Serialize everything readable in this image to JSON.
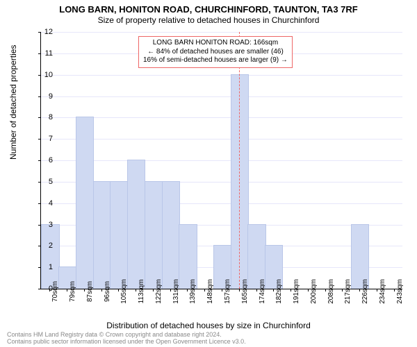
{
  "title": "LONG BARN, HONITON ROAD, CHURCHINFORD, TAUNTON, TA3 7RF",
  "subtitle": "Size of property relative to detached houses in Churchinford",
  "ylabel": "Number of detached properties",
  "xlabel": "Distribution of detached houses by size in Churchinford",
  "footer_line1": "Contains HM Land Registry data © Crown copyright and database right 2024.",
  "footer_line2": "Contains public sector information licensed under the Open Government Licence v3.0.",
  "chart": {
    "type": "histogram",
    "ylim": [
      0,
      12
    ],
    "ytick_step": 1,
    "x_categories": [
      "70sqm",
      "79sqm",
      "87sqm",
      "96sqm",
      "105sqm",
      "113sqm",
      "122sqm",
      "131sqm",
      "139sqm",
      "148sqm",
      "157sqm",
      "165sqm",
      "174sqm",
      "182sqm",
      "191sqm",
      "200sqm",
      "208sqm",
      "217sqm",
      "226sqm",
      "234sqm",
      "243sqm"
    ],
    "bar_values": [
      3,
      1,
      8,
      5,
      5,
      6,
      5,
      5,
      3,
      0,
      2,
      10,
      3,
      2,
      0,
      0,
      0,
      0,
      3,
      0,
      0
    ],
    "bar_color": "#cfd9f2",
    "bar_border": "#b9c6e8",
    "grid_color": "#e6e6fa",
    "background_color": "#ffffff",
    "reference_line": {
      "index": 11,
      "color": "#e66"
    },
    "annotation": {
      "line1": "LONG BARN HONITON ROAD: 166sqm",
      "line2": "← 84% of detached houses are smaller (46)",
      "line3": "16% of semi-detached houses are larger (9) →",
      "border_color": "#e66",
      "fontsize": 10
    },
    "title_fontsize": 13,
    "subtitle_fontsize": 12,
    "axis_label_fontsize": 12,
    "tick_fontsize": 10
  }
}
